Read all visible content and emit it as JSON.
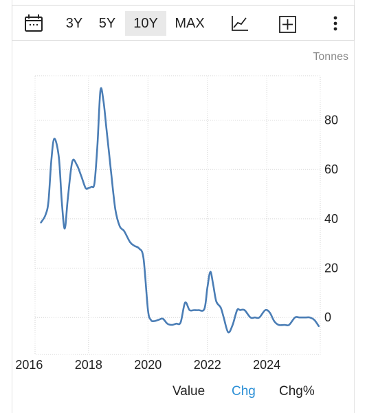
{
  "toolbar": {
    "icons": [
      "calendar-icon",
      "line-chart-icon",
      "add-compare-icon",
      "more-vert-icon"
    ],
    "ranges": [
      {
        "label": "3Y",
        "active": false
      },
      {
        "label": "5Y",
        "active": false
      },
      {
        "label": "10Y",
        "active": true
      },
      {
        "label": "MAX",
        "active": false
      }
    ]
  },
  "unit_label": "Tonnes",
  "tabs": {
    "value": "Value",
    "chg": "Chg",
    "chg_pct": "Chg%",
    "active": "chg",
    "active_color": "#2b8fd6"
  },
  "chart_data": {
    "type": "line",
    "title": "",
    "xlabel": "",
    "ylabel": "",
    "line_color": "#4a7db5",
    "grid": true,
    "x_ticks": [
      2016,
      2018,
      2020,
      2022,
      2024
    ],
    "y_ticks": [
      0,
      20,
      40,
      60,
      80
    ],
    "xlim": [
      2016.2,
      2025.8
    ],
    "ylim": [
      -15,
      98
    ],
    "series": [
      {
        "x": [
          2016.4,
          2016.55,
          2016.65,
          2016.75,
          2016.85,
          2017.0,
          2017.1,
          2017.2,
          2017.3,
          2017.45,
          2017.6,
          2017.75,
          2017.9,
          2018.0,
          2018.1,
          2018.2,
          2018.3,
          2018.4,
          2018.5,
          2018.6,
          2018.75,
          2018.9,
          2019.05,
          2019.2,
          2019.4,
          2019.55,
          2019.7,
          2019.85,
          2020.0,
          2020.1,
          2020.2,
          2020.35,
          2020.5,
          2020.65,
          2020.8,
          2020.95,
          2021.1,
          2021.25,
          2021.4,
          2021.55,
          2021.7,
          2021.9,
          2022.0,
          2022.1,
          2022.2,
          2022.3,
          2022.45,
          2022.55,
          2022.7,
          2022.85,
          2023.0,
          2023.1,
          2023.25,
          2023.45,
          2023.6,
          2023.75,
          2023.95,
          2024.1,
          2024.25,
          2024.4,
          2024.6,
          2024.75,
          2024.95,
          2025.1,
          2025.3,
          2025.45,
          2025.6,
          2025.75
        ],
        "y": [
          38.5,
          41.5,
          47,
          64,
          72.5,
          65,
          47,
          36,
          48,
          63,
          62,
          57.5,
          52.5,
          52.5,
          53,
          54.5,
          70,
          92,
          88,
          77,
          60,
          44,
          37,
          35,
          30.5,
          29,
          28,
          24,
          3,
          -1,
          -1.5,
          -1,
          -0.5,
          -2.5,
          -3,
          -2.5,
          -2,
          6,
          3,
          3,
          3,
          3.5,
          12,
          18.5,
          13,
          6.5,
          4,
          0,
          -6,
          -3,
          3,
          3,
          3,
          0,
          0,
          0,
          3,
          2,
          -1.5,
          -3,
          -3,
          -3,
          0,
          0,
          0,
          0,
          -1,
          -3.5
        ]
      }
    ]
  }
}
